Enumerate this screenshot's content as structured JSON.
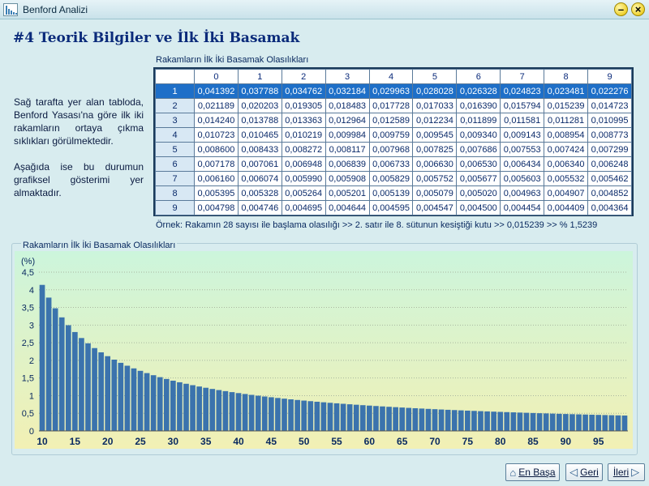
{
  "window": {
    "title": "Benford Analizi"
  },
  "page_title": "#4 Teorik Bilgiler ve İlk İki Basamak",
  "description": {
    "p1": "Sağ tarafta yer alan tabloda, Benford Yasası'na göre ilk iki rakamların ortaya çıkma sıklıkları görülmektedir.",
    "p2": "Aşağıda ise bu durumun grafiksel gösterimi yer almaktadır."
  },
  "table": {
    "caption": "Rakamların İlk İki Basamak Olasılıkları",
    "columns": [
      "0",
      "1",
      "2",
      "3",
      "4",
      "5",
      "6",
      "7",
      "8",
      "9"
    ],
    "rows": [
      {
        "label": "1",
        "values": [
          "0,041392",
          "0,037788",
          "0,034762",
          "0,032184",
          "0,029963",
          "0,028028",
          "0,026328",
          "0,024823",
          "0,023481",
          "0,022276"
        ]
      },
      {
        "label": "2",
        "values": [
          "0,021189",
          "0,020203",
          "0,019305",
          "0,018483",
          "0,017728",
          "0,017033",
          "0,016390",
          "0,015794",
          "0,015239",
          "0,014723"
        ]
      },
      {
        "label": "3",
        "values": [
          "0,014240",
          "0,013788",
          "0,013363",
          "0,012964",
          "0,012589",
          "0,012234",
          "0,011899",
          "0,011581",
          "0,011281",
          "0,010995"
        ]
      },
      {
        "label": "4",
        "values": [
          "0,010723",
          "0,010465",
          "0,010219",
          "0,009984",
          "0,009759",
          "0,009545",
          "0,009340",
          "0,009143",
          "0,008954",
          "0,008773"
        ]
      },
      {
        "label": "5",
        "values": [
          "0,008600",
          "0,008433",
          "0,008272",
          "0,008117",
          "0,007968",
          "0,007825",
          "0,007686",
          "0,007553",
          "0,007424",
          "0,007299"
        ]
      },
      {
        "label": "6",
        "values": [
          "0,007178",
          "0,007061",
          "0,006948",
          "0,006839",
          "0,006733",
          "0,006630",
          "0,006530",
          "0,006434",
          "0,006340",
          "0,006248"
        ]
      },
      {
        "label": "7",
        "values": [
          "0,006160",
          "0,006074",
          "0,005990",
          "0,005908",
          "0,005829",
          "0,005752",
          "0,005677",
          "0,005603",
          "0,005532",
          "0,005462"
        ]
      },
      {
        "label": "8",
        "values": [
          "0,005395",
          "0,005328",
          "0,005264",
          "0,005201",
          "0,005139",
          "0,005079",
          "0,005020",
          "0,004963",
          "0,004907",
          "0,004852"
        ]
      },
      {
        "label": "9",
        "values": [
          "0,004798",
          "0,004746",
          "0,004695",
          "0,004644",
          "0,004595",
          "0,004547",
          "0,004500",
          "0,004454",
          "0,004409",
          "0,004364"
        ]
      }
    ],
    "selected_row": 0
  },
  "example_text": "Örnek: Rakamın 28 sayısı ile başlama olasılığı >> 2. satır ile 8. sütunun kesiştiği kutu >> 0,015239 >> % 1,5239",
  "chart_data": {
    "type": "bar",
    "title": "Rakamların İlk İki Basamak Olasılıkları",
    "ylabel": "(%)",
    "ylim": [
      0,
      4.5
    ],
    "yticks": [
      "0",
      "0,5",
      "1",
      "1,5",
      "2",
      "2,5",
      "3",
      "3,5",
      "4",
      "4,5"
    ],
    "xticks": [
      "10",
      "15",
      "20",
      "25",
      "30",
      "35",
      "40",
      "45",
      "50",
      "55",
      "60",
      "65",
      "70",
      "75",
      "80",
      "85",
      "90",
      "95"
    ],
    "x": [
      10,
      11,
      12,
      13,
      14,
      15,
      16,
      17,
      18,
      19,
      20,
      21,
      22,
      23,
      24,
      25,
      26,
      27,
      28,
      29,
      30,
      31,
      32,
      33,
      34,
      35,
      36,
      37,
      38,
      39,
      40,
      41,
      42,
      43,
      44,
      45,
      46,
      47,
      48,
      49,
      50,
      51,
      52,
      53,
      54,
      55,
      56,
      57,
      58,
      59,
      60,
      61,
      62,
      63,
      64,
      65,
      66,
      67,
      68,
      69,
      70,
      71,
      72,
      73,
      74,
      75,
      76,
      77,
      78,
      79,
      80,
      81,
      82,
      83,
      84,
      85,
      86,
      87,
      88,
      89,
      90,
      91,
      92,
      93,
      94,
      95,
      96,
      97,
      98,
      99
    ],
    "values": [
      4.1392,
      3.7788,
      3.4762,
      3.2184,
      2.9963,
      2.8028,
      2.6328,
      2.4823,
      2.3481,
      2.2276,
      2.1189,
      2.0203,
      1.9305,
      1.8483,
      1.7728,
      1.7033,
      1.639,
      1.5794,
      1.5239,
      1.4723,
      1.424,
      1.3788,
      1.3363,
      1.2964,
      1.2589,
      1.2234,
      1.1899,
      1.1581,
      1.1281,
      1.0995,
      1.0723,
      1.0465,
      1.0219,
      0.9984,
      0.9759,
      0.9545,
      0.934,
      0.9143,
      0.8954,
      0.8773,
      0.86,
      0.8433,
      0.8272,
      0.8117,
      0.7968,
      0.7825,
      0.7686,
      0.7553,
      0.7424,
      0.7299,
      0.7178,
      0.7061,
      0.6948,
      0.6839,
      0.6733,
      0.663,
      0.653,
      0.6434,
      0.634,
      0.6248,
      0.616,
      0.6074,
      0.599,
      0.5908,
      0.5829,
      0.5752,
      0.5677,
      0.5603,
      0.5532,
      0.5462,
      0.5395,
      0.5328,
      0.5264,
      0.5201,
      0.5139,
      0.5079,
      0.502,
      0.4963,
      0.4907,
      0.4852,
      0.4798,
      0.4746,
      0.4695,
      0.4644,
      0.4595,
      0.4547,
      0.45,
      0.4454,
      0.4409,
      0.4364
    ],
    "bar_color": "#3b73ad",
    "background_top": "#ccf5dc",
    "background_bottom": "#f2f0b4",
    "grid": true
  },
  "nav": {
    "home_label": "En Başa",
    "back_label": "Geri",
    "next_label": "İleri"
  }
}
